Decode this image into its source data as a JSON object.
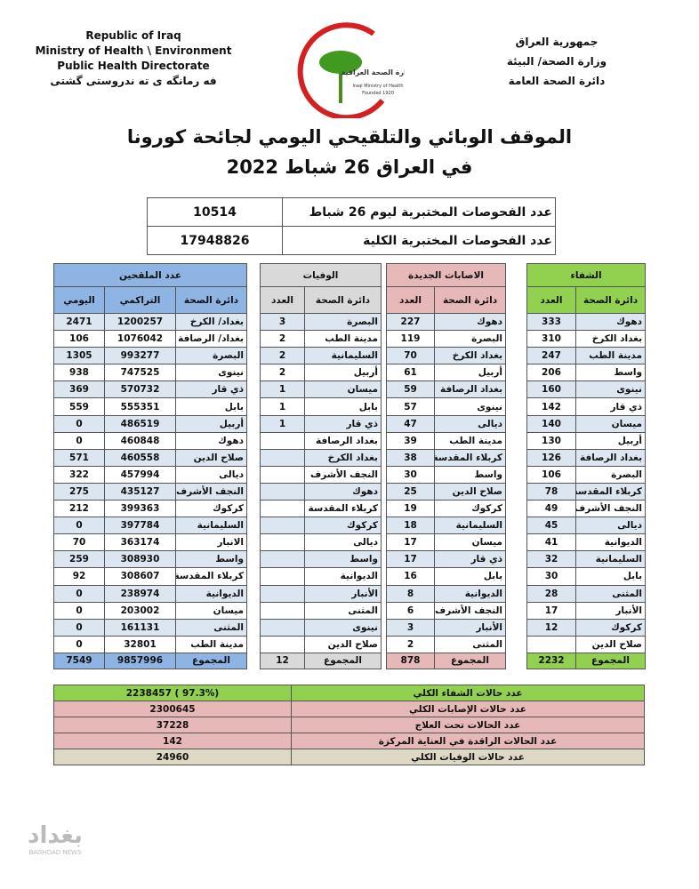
{
  "header": {
    "left": [
      "Republic of Iraq",
      "Ministry of Health \\ Environment",
      "Public Health Directorate",
      "فه رمانگه ى ته ندروستى گشتى"
    ],
    "right": [
      "جمهورية العراق",
      "وزارة الصحة/ البيئة",
      "دائرة الصحة العامة"
    ],
    "logo": [
      "وزارة الصحة العراقية",
      "Iraqi Ministry of Health",
      "Founded 1920"
    ]
  },
  "title": [
    "الموقف الوبائي والتلقيحي اليومي لجائحة كورونا",
    "في العراق 26 شباط 2022"
  ],
  "tests": [
    {
      "label": "عدد الفحوصات المختبرية ليوم 26 شباط",
      "value": 10514
    },
    {
      "label": "عدد الفحوصات المختبرية الكلية",
      "value": 17948826
    }
  ],
  "sections": [
    {
      "title": "الشفاء",
      "color": "#92d050",
      "columns": [
        "دائرة الصحة",
        "العدد"
      ],
      "rows": [
        [
          "دهوك",
          333
        ],
        [
          "بغداد الكرخ",
          310
        ],
        [
          "مدينة الطب",
          247
        ],
        [
          "واسط",
          206
        ],
        [
          "نينوى",
          160
        ],
        [
          "ذي قار",
          142
        ],
        [
          "ميسان",
          140
        ],
        [
          "أربيل",
          130
        ],
        [
          "بغداد الرصافة",
          126
        ],
        [
          "البصرة",
          106
        ],
        [
          "كربلاء المقدسة",
          78
        ],
        [
          "النجف الأشرف",
          49
        ],
        [
          "ديالى",
          45
        ],
        [
          "الديوانية",
          41
        ],
        [
          "السليمانية",
          32
        ],
        [
          "بابل",
          30
        ],
        [
          "المثنى",
          28
        ],
        [
          "الأنبار",
          17
        ],
        [
          "كركوك",
          12
        ],
        [
          "صلاح الدين",
          null
        ]
      ],
      "total": [
        "المجموع",
        2232
      ]
    },
    {
      "title": "الاصابات الجديدة",
      "color": "#e6b8b7",
      "columns": [
        "دائرة الصحة",
        "العدد"
      ],
      "rows": [
        [
          "دهوك",
          227
        ],
        [
          "البصرة",
          119
        ],
        [
          "بغداد الكرخ",
          70
        ],
        [
          "أربيل",
          61
        ],
        [
          "بغداد الرصافة",
          59
        ],
        [
          "نينوى",
          57
        ],
        [
          "ديالى",
          47
        ],
        [
          "مدينة الطب",
          39
        ],
        [
          "كربلاء المقدسة",
          38
        ],
        [
          "واسط",
          30
        ],
        [
          "صلاح الدين",
          25
        ],
        [
          "كركوك",
          19
        ],
        [
          "السليمانية",
          18
        ],
        [
          "ميسان",
          17
        ],
        [
          "ذي قار",
          17
        ],
        [
          "بابل",
          16
        ],
        [
          "الديوانية",
          8
        ],
        [
          "النجف الأشرف",
          6
        ],
        [
          "الأنبار",
          3
        ],
        [
          "المثنى",
          2
        ]
      ],
      "total": [
        "المجموع",
        878
      ]
    },
    {
      "title": "الوفيات",
      "color": "#d9d9d9",
      "columns": [
        "دائرة الصحة",
        "العدد"
      ],
      "rows": [
        [
          "البصرة",
          3
        ],
        [
          "مدينة الطب",
          2
        ],
        [
          "السليمانية",
          2
        ],
        [
          "أربيل",
          2
        ],
        [
          "ميسان",
          1
        ],
        [
          "بابل",
          1
        ],
        [
          "ذي قار",
          1
        ],
        [
          "بغداد الرصافة",
          null
        ],
        [
          "بغداد الكرخ",
          null
        ],
        [
          "النجف الأشرف",
          null
        ],
        [
          "دهوك",
          null
        ],
        [
          "كربلاء المقدسة",
          null
        ],
        [
          "كركوك",
          null
        ],
        [
          "ديالى",
          null
        ],
        [
          "واسط",
          null
        ],
        [
          "الديوانية",
          null
        ],
        [
          "الأنبار",
          null
        ],
        [
          "المثنى",
          null
        ],
        [
          "نينوى",
          null
        ],
        [
          "صلاح الدين",
          null
        ]
      ],
      "total": [
        "المجموع",
        12
      ]
    },
    {
      "title": "عدد الملقحين",
      "color": "#8db4e2",
      "columns": [
        "دائرة الصحة",
        "التراكمي",
        "اليومي"
      ],
      "rows": [
        [
          "بغداد/ الكرخ",
          1200257,
          2471
        ],
        [
          "بغداد/ الرصافة",
          1076042,
          106
        ],
        [
          "البصرة",
          993277,
          1305
        ],
        [
          "نينوى",
          747525,
          938
        ],
        [
          "ذي قار",
          570732,
          369
        ],
        [
          "بابل",
          555351,
          559
        ],
        [
          "أربيل",
          486519,
          0
        ],
        [
          "دهوك",
          460848,
          0
        ],
        [
          "صلاح الدين",
          460558,
          571
        ],
        [
          "ديالى",
          457994,
          322
        ],
        [
          "النجف الأشرف",
          435127,
          275
        ],
        [
          "كركوك",
          399363,
          212
        ],
        [
          "السليمانية",
          397784,
          0
        ],
        [
          "الانبار",
          363174,
          70
        ],
        [
          "واسط",
          308930,
          259
        ],
        [
          "كربلاء المقدسة",
          308607,
          92
        ],
        [
          "الديوانية",
          238974,
          0
        ],
        [
          "ميسان",
          203002,
          0
        ],
        [
          "المثنى",
          161131,
          0
        ],
        [
          "مدينة الطب",
          32801,
          0
        ]
      ],
      "total": [
        "المجموع",
        9857996,
        7549
      ]
    }
  ],
  "summary": [
    {
      "label": "عدد حالات الشفاء الكلي",
      "value": "2238457 ( 97.3%)",
      "color": "#92d050"
    },
    {
      "label": "عدد حالات الإصابات الكلي",
      "value": 2300645,
      "color": "#e6b8b7"
    },
    {
      "label": "عدد الحالات تحت العلاج",
      "value": 37228,
      "color": "#e6b8b7"
    },
    {
      "label": "عدد الحالات الراقدة في العناية المركزة",
      "value": 142,
      "color": "#e6b8b7"
    },
    {
      "label": "عدد حالات الوفيات الكلي",
      "value": 24960,
      "color": "#ddd9c4"
    }
  ],
  "watermark": [
    "بغداد",
    "BAGHDAD NEWS"
  ]
}
